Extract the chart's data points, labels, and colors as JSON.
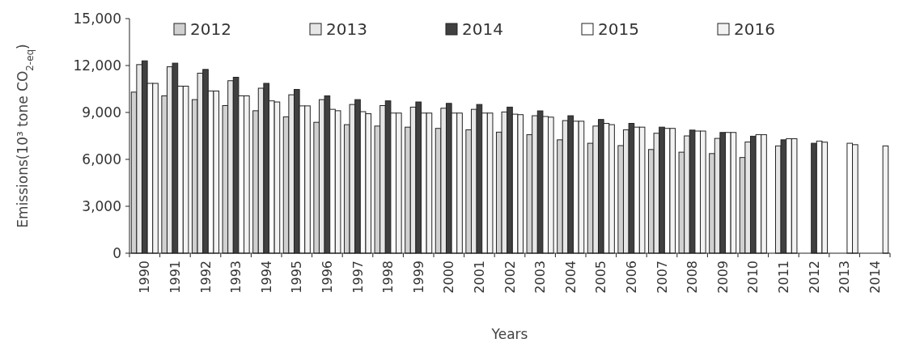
{
  "chart_data": {
    "type": "bar",
    "xlabel": "Years",
    "ylabel": "Emissions(10³ tone CO$_{2-eq}$)",
    "categories": [
      "1990",
      "1991",
      "1992",
      "1993",
      "1994",
      "1995",
      "1996",
      "1997",
      "1998",
      "1999",
      "2000",
      "2001",
      "2002",
      "2003",
      "2004",
      "2005",
      "2006",
      "2007",
      "2008",
      "2009",
      "2010",
      "2011",
      "2012",
      "2013",
      "2014"
    ],
    "series": [
      {
        "name": "2012",
        "color": "#d0d0d0",
        "values": [
          10300,
          10060,
          9820,
          9440,
          9110,
          8720,
          8370,
          8220,
          8130,
          8060,
          7980,
          7890,
          7740,
          7580,
          7250,
          7030,
          6880,
          6630,
          6460,
          6370,
          6120,
          null,
          null,
          null,
          null
        ]
      },
      {
        "name": "2013",
        "color": "#e6e6e6",
        "values": [
          12060,
          11920,
          11510,
          11030,
          10550,
          10130,
          9820,
          9510,
          9440,
          9340,
          9270,
          9200,
          9030,
          8790,
          8480,
          8130,
          7890,
          7670,
          7500,
          7340,
          7110,
          6860,
          null,
          null,
          null
        ]
      },
      {
        "name": "2014",
        "color": "#404040",
        "values": [
          12300,
          12150,
          11750,
          11250,
          10860,
          10470,
          10060,
          9820,
          9740,
          9670,
          9580,
          9510,
          9340,
          9100,
          8790,
          8550,
          8300,
          8060,
          7870,
          7720,
          7480,
          7250,
          7030,
          null,
          null
        ]
      },
      {
        "name": "2015",
        "color": "#ffffff",
        "values": [
          10860,
          10680,
          10370,
          10060,
          9740,
          9420,
          9200,
          9050,
          8960,
          8960,
          8960,
          8960,
          8890,
          8740,
          8440,
          8300,
          8060,
          7980,
          7810,
          7720,
          7580,
          7320,
          7170,
          7030,
          null
        ]
      },
      {
        "name": "2016",
        "color": "#f2f2f2",
        "values": [
          10860,
          10680,
          10370,
          10060,
          9670,
          9420,
          9110,
          8920,
          8960,
          8960,
          8960,
          8960,
          8860,
          8700,
          8440,
          8220,
          8060,
          7980,
          7810,
          7720,
          7580,
          7320,
          7100,
          6940,
          6860
        ]
      }
    ],
    "ylim": [
      0,
      15000
    ],
    "yticks": [
      {
        "value": 0,
        "label": "0"
      },
      {
        "value": 3000,
        "label": "3,000"
      },
      {
        "value": 6000,
        "label": "6,000"
      },
      {
        "value": 9000,
        "label": "9,000"
      },
      {
        "value": 12000,
        "label": "12,000"
      },
      {
        "value": 15000,
        "label": "15,000"
      }
    ],
    "legend": "top"
  }
}
